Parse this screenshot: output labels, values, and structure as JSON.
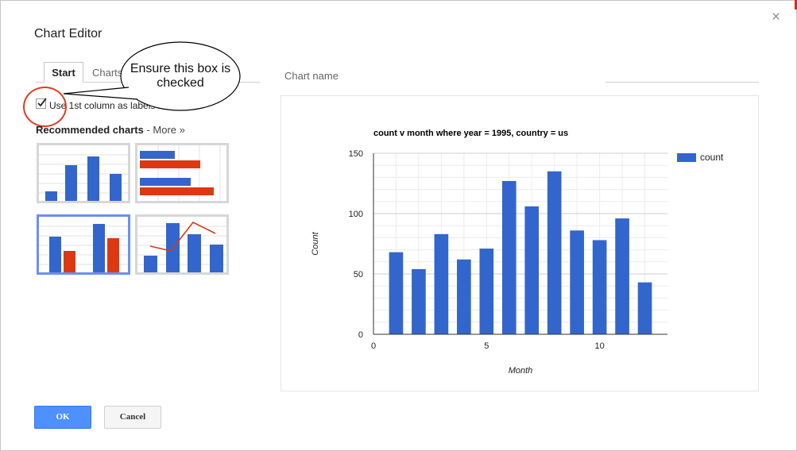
{
  "dialog": {
    "title": "Chart Editor",
    "close_glyph": "×"
  },
  "tabs": [
    {
      "label": "Start",
      "active": true
    },
    {
      "label": "Charts",
      "active": false
    }
  ],
  "chart_name": {
    "label": "Chart name",
    "value": ""
  },
  "option": {
    "checked": true,
    "label": "Use 1st column as labels"
  },
  "annotation": {
    "text_line1": "Ensure this box is",
    "text_line2": "checked",
    "highlight_color": "#e03b20"
  },
  "recommended": {
    "heading": "Recommended charts",
    "more_label": "- More »",
    "thumbnails": [
      {
        "kind": "column-chart",
        "selected": false
      },
      {
        "kind": "bar-chart",
        "selected": false
      },
      {
        "kind": "grouped-column-chart",
        "selected": true
      },
      {
        "kind": "combo-chart",
        "selected": false
      }
    ]
  },
  "buttons": {
    "ok": "OK",
    "cancel": "Cancel"
  },
  "colors": {
    "bar": "#3366cc",
    "secondary": "#dc3912",
    "accent": "#4d90fe"
  },
  "chart_data": {
    "type": "bar",
    "title": "count v month where year = 1995, country = us",
    "xlabel": "Month",
    "ylabel": "Count",
    "x": [
      1,
      2,
      3,
      4,
      5,
      6,
      7,
      8,
      9,
      10,
      11,
      12
    ],
    "series": [
      {
        "name": "count",
        "values": [
          68,
          54,
          83,
          62,
          71,
          127,
          106,
          135,
          86,
          78,
          96,
          43
        ]
      }
    ],
    "xlim": [
      0,
      13
    ],
    "ylim": [
      0,
      150
    ],
    "xticks": [
      0,
      5,
      10
    ],
    "yticks": [
      0,
      50,
      100,
      150
    ],
    "grid": true,
    "legend": "right"
  }
}
